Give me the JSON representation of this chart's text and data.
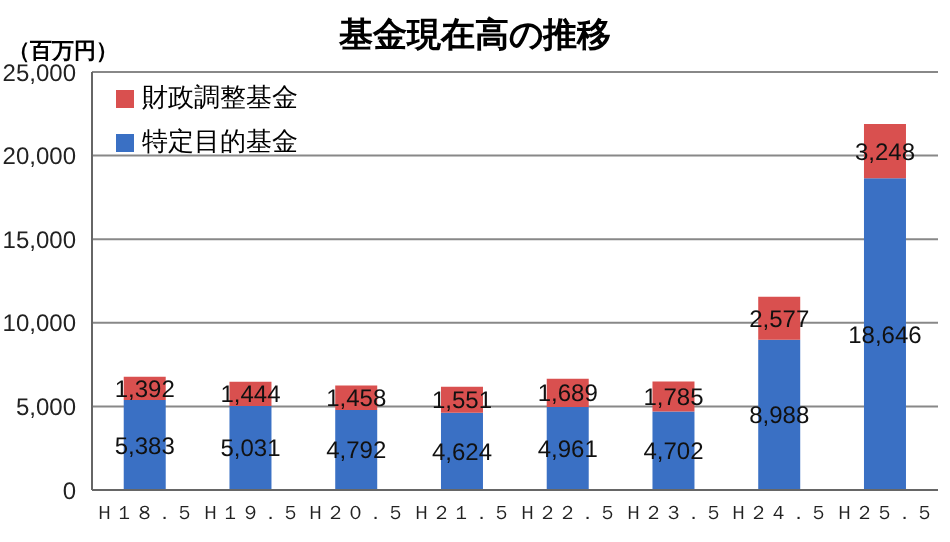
{
  "chart_data": {
    "type": "bar",
    "title": "基金現在高の推移",
    "annotations": [
      "（百万円）"
    ],
    "categories": [
      "Ｈ１８．５",
      "Ｈ１９．５",
      "Ｈ２０．５",
      "Ｈ２１．５",
      "Ｈ２２．５",
      "Ｈ２３．５",
      "Ｈ２４．５",
      "Ｈ２５．５"
    ],
    "series": [
      {
        "name": "特定目的基金",
        "color": "#3a70c4",
        "values": [
          5383,
          5031,
          4792,
          4624,
          4961,
          4702,
          8988,
          18646
        ],
        "value_labels": [
          "5,383",
          "5,031",
          "4,792",
          "4,624",
          "4,961",
          "4,702",
          "8,988",
          "18,646"
        ]
      },
      {
        "name": "財政調整基金",
        "color": "#d9504f",
        "values": [
          1392,
          1444,
          1458,
          1551,
          1689,
          1785,
          2577,
          3248
        ],
        "value_labels": [
          "1,392",
          "1,444",
          "1,458",
          "1,551",
          "1,689",
          "1,785",
          "2,577",
          "3,248"
        ]
      }
    ],
    "stacked": true,
    "ylim": [
      0,
      25000
    ],
    "yticks": [
      0,
      {
        "value": 5000,
        "label": "5,000"
      },
      {
        "value": 10000,
        "label": "10,000"
      },
      {
        "value": 15000,
        "label": "15,000"
      },
      {
        "value": 20000,
        "label": "20,000"
      },
      {
        "value": 25000,
        "label": "25,000"
      }
    ],
    "grid": "y",
    "legend": "top left"
  }
}
